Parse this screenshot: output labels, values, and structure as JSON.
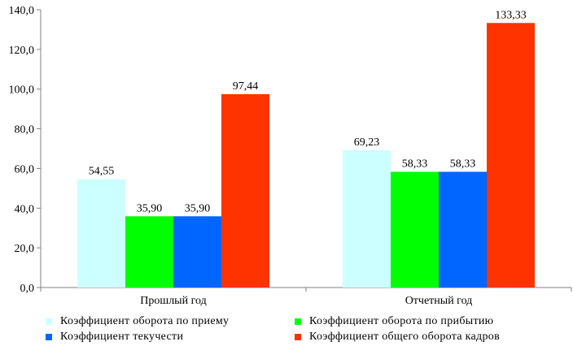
{
  "chart_data": {
    "type": "bar",
    "categories": [
      "Прошлый год",
      "Отчетный год"
    ],
    "series": [
      {
        "name": "Коэффициент оборота по приему",
        "color": "#ccffff",
        "values": [
          54.55,
          69.23
        ],
        "labels": [
          "54,55",
          "69,23"
        ]
      },
      {
        "name": "Коэффициент оборота по прибытию",
        "color": "#00ff00",
        "values": [
          35.9,
          58.33
        ],
        "labels": [
          "35,90",
          "58,33"
        ]
      },
      {
        "name": "Коэффициент текучести",
        "color": "#0066ff",
        "values": [
          35.9,
          58.33
        ],
        "labels": [
          "35,90",
          "58,33"
        ]
      },
      {
        "name": "Коэффициент общего оборота кадров",
        "color": "#ff3300",
        "values": [
          97.44,
          133.33
        ],
        "labels": [
          "97,44",
          "133,33"
        ]
      }
    ],
    "ylim": [
      0,
      140
    ],
    "yticks": [
      0,
      20,
      40,
      60,
      80,
      100,
      120,
      140
    ],
    "ytick_labels": [
      "0,0",
      "20,0",
      "40,0",
      "60,0",
      "80,0",
      "100,0",
      "120,0",
      "140,0"
    ],
    "grid": false,
    "legend_position": "bottom",
    "title": "",
    "xlabel": "",
    "ylabel": ""
  }
}
